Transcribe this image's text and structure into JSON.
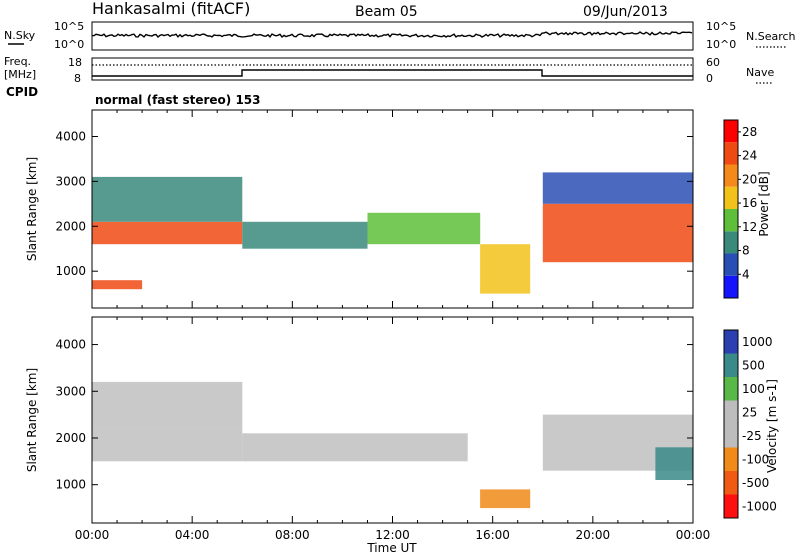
{
  "header": {
    "station": "Hankasalmi (fitACF)",
    "beam": "Beam 05",
    "date": "09/Jun/2013"
  },
  "colors": {
    "power_scale": [
      "#1414ff",
      "#2a4fb4",
      "#3a8a7c",
      "#5fbf3a",
      "#f2c21a",
      "#f58a1a",
      "#f04a14",
      "#ff0000"
    ],
    "velocity_scale": [
      "#2b3fb0",
      "#3a8a8a",
      "#58b848",
      "#bdbdbd",
      "#bdbdbd",
      "#f08a18",
      "#f05a14",
      "#ff1010"
    ],
    "ground_scatter": "#c0c0c0"
  },
  "panels": {
    "nsky": {
      "left_label": "N.Sky",
      "right_label": "N.Search",
      "left_ticks": [
        "10^5",
        "10^0"
      ],
      "right_ticks": [
        "10^5",
        "10^0"
      ],
      "right_legend_style": "dotted"
    },
    "freq": {
      "left_label_1": "Freq.",
      "left_label_2": "[MHz]",
      "left_ticks": [
        "18",
        "8"
      ],
      "right_label": "Nave",
      "right_ticks": [
        "60",
        "0"
      ],
      "right_legend_style": "dotted"
    },
    "cpid": {
      "label": "CPID",
      "program": "normal (fast stereo) 153"
    }
  },
  "chart_data": [
    {
      "type": "heatmap",
      "panel": "power",
      "xlabel": "",
      "ylabel": "Slant Range [km]",
      "x_ticks": [
        "00:00",
        "04:00",
        "08:00",
        "12:00",
        "16:00",
        "20:00",
        "00:00"
      ],
      "xlim_hours": [
        0,
        24
      ],
      "y_ticks": [
        1000,
        2000,
        3000,
        4000
      ],
      "ylim": [
        180,
        4590
      ],
      "colorbar": {
        "label": "Power [dB]",
        "ticks": [
          4,
          8,
          12,
          16,
          20,
          24,
          28
        ],
        "range": [
          0,
          30
        ]
      },
      "bands": [
        {
          "start_h": 0.0,
          "end_h": 6.0,
          "r0": 1600,
          "r1": 2100,
          "value": 24
        },
        {
          "start_h": 0.0,
          "end_h": 6.0,
          "r0": 2100,
          "r1": 3100,
          "value": 10
        },
        {
          "start_h": 0.0,
          "end_h": 2.0,
          "r0": 600,
          "r1": 800,
          "value": 26
        },
        {
          "start_h": 6.0,
          "end_h": 11.0,
          "r0": 1500,
          "r1": 2100,
          "value": 10
        },
        {
          "start_h": 11.0,
          "end_h": 15.5,
          "r0": 1600,
          "r1": 2300,
          "value": 14
        },
        {
          "start_h": 15.5,
          "end_h": 17.5,
          "r0": 500,
          "r1": 1600,
          "value": 18
        },
        {
          "start_h": 18.0,
          "end_h": 24.0,
          "r0": 1200,
          "r1": 2500,
          "value": 24
        },
        {
          "start_h": 18.0,
          "end_h": 24.0,
          "r0": 2500,
          "r1": 3200,
          "value": 6
        }
      ]
    },
    {
      "type": "heatmap",
      "panel": "velocity",
      "xlabel": "Time UT",
      "ylabel": "Slant Range [km]",
      "x_ticks": [
        "00:00",
        "04:00",
        "08:00",
        "12:00",
        "16:00",
        "20:00",
        "00:00"
      ],
      "xlim_hours": [
        0,
        24
      ],
      "y_ticks": [
        1000,
        2000,
        3000,
        4000
      ],
      "ylim": [
        180,
        4590
      ],
      "colorbar": {
        "label": "Velocity [m s-1]",
        "ticks": [
          "1000",
          "500",
          "100",
          "25",
          "-25",
          "-100",
          "-500",
          "-1000"
        ]
      },
      "bands": [
        {
          "start_h": 0.0,
          "end_h": 6.0,
          "r0": 1500,
          "r1": 2200,
          "value": 0
        },
        {
          "start_h": 0.0,
          "end_h": 6.0,
          "r0": 2200,
          "r1": 3200,
          "value": 0
        },
        {
          "start_h": 6.0,
          "end_h": 15.0,
          "r0": 1500,
          "r1": 2100,
          "value": 0
        },
        {
          "start_h": 15.5,
          "end_h": 17.5,
          "r0": 500,
          "r1": 900,
          "value": -300
        },
        {
          "start_h": 18.0,
          "end_h": 24.0,
          "r0": 1300,
          "r1": 2500,
          "value": 0
        },
        {
          "start_h": 22.5,
          "end_h": 24.0,
          "r0": 1100,
          "r1": 1800,
          "value": 300
        }
      ]
    }
  ]
}
